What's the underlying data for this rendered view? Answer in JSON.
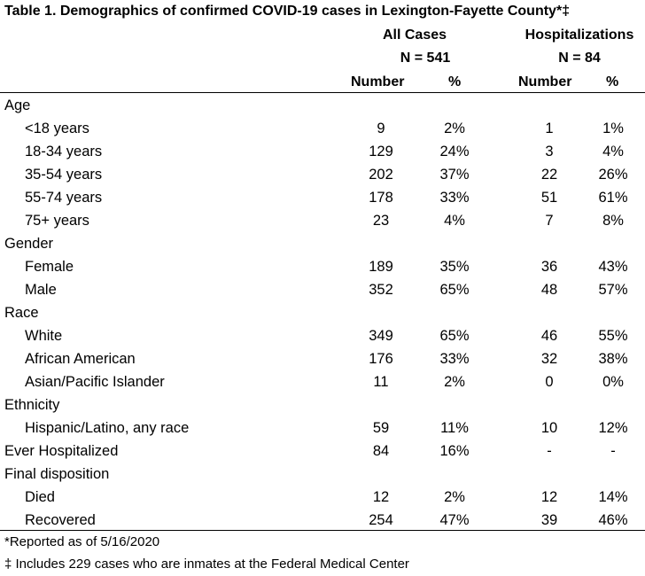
{
  "title": "Table 1. Demographics of confirmed COVID-19 cases in Lexington-Fayette County*‡",
  "groups": {
    "all_cases": {
      "label": "All Cases",
      "n": "N = 541"
    },
    "hospitalizations": {
      "label": "Hospitalizations",
      "n": "N = 84"
    }
  },
  "columns": {
    "number": "Number",
    "percent": "%"
  },
  "rows": [
    {
      "label": "Age",
      "category": true
    },
    {
      "label": "<18 years",
      "values": [
        "9",
        "2%",
        "1",
        "1%"
      ]
    },
    {
      "label": "18-34 years",
      "values": [
        "129",
        "24%",
        "3",
        "4%"
      ]
    },
    {
      "label": "35-54 years",
      "values": [
        "202",
        "37%",
        "22",
        "26%"
      ]
    },
    {
      "label": "55-74 years",
      "values": [
        "178",
        "33%",
        "51",
        "61%"
      ]
    },
    {
      "label": "75+ years",
      "values": [
        "23",
        "4%",
        "7",
        "8%"
      ]
    },
    {
      "label": "Gender",
      "category": true
    },
    {
      "label": "Female",
      "values": [
        "189",
        "35%",
        "36",
        "43%"
      ]
    },
    {
      "label": "Male",
      "values": [
        "352",
        "65%",
        "48",
        "57%"
      ]
    },
    {
      "label": "Race",
      "category": true
    },
    {
      "label": "White",
      "values": [
        "349",
        "65%",
        "46",
        "55%"
      ]
    },
    {
      "label": "African American",
      "values": [
        "176",
        "33%",
        "32",
        "38%"
      ]
    },
    {
      "label": "Asian/Pacific Islander",
      "values": [
        "11",
        "2%",
        "0",
        "0%"
      ]
    },
    {
      "label": "Ethnicity",
      "category": true
    },
    {
      "label": "Hispanic/Latino, any race",
      "values": [
        "59",
        "11%",
        "10",
        "12%"
      ]
    },
    {
      "label": "Ever Hospitalized",
      "category": true,
      "values": [
        "84",
        "16%",
        "-",
        "-"
      ]
    },
    {
      "label": "Final disposition",
      "category": true
    },
    {
      "label": "Died",
      "values": [
        "12",
        "2%",
        "12",
        "14%"
      ]
    },
    {
      "label": "Recovered",
      "values": [
        "254",
        "47%",
        "39",
        "46%"
      ]
    }
  ],
  "footnotes": [
    "*Reported as of 5/16/2020",
    "‡ Includes 229 cases who are inmates at the Federal Medical Center"
  ]
}
